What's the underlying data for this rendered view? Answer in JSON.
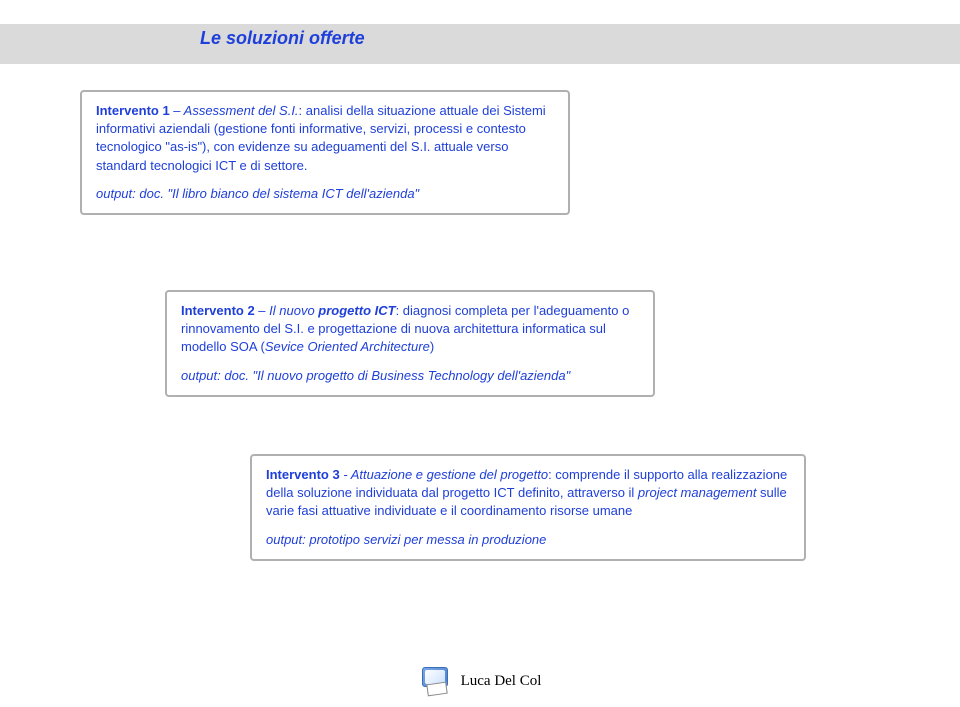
{
  "header": {
    "title": "Le soluzioni offerte"
  },
  "card1": {
    "lead_bold": "Intervento 1",
    "lead_italic": " – Assessment del S.I.",
    "body": ": analisi della situazione attuale dei Sistemi informativi aziendali (gestione fonti informative, servizi, processi e contesto tecnologico \"as-is\"), con evidenze su adeguamenti del S.I. attuale verso standard tecnologici ICT e di settore.",
    "output_label": "output:  ",
    "output_value": "doc. \"Il libro bianco del sistema ICT dell'azienda\""
  },
  "card2": {
    "lead_bold": "Intervento 2",
    "lead_italic1": " – Il nuovo ",
    "lead_italic_bold": "progetto ICT",
    "body": ": diagnosi completa per l'adeguamento o rinnovamento del S.I. e progettazione di nuova architettura informatica sul modello SOA (",
    "body_italic": "Sevice Oriented Architecture",
    "body_after": ")",
    "output_label": "output:  ",
    "output_value": "doc. \"Il nuovo progetto di Business Technology dell'azienda\""
  },
  "card3": {
    "lead_bold": "Intervento 3",
    "lead_italic": " - Attuazione e gestione del progetto",
    "body_pre": ":  comprende il supporto alla realizzazione della soluzione individuata dal progetto ICT definito, attraverso il ",
    "body_italic": "project management",
    "body_post": " sulle varie fasi attuative individuate e il coordinamento risorse umane",
    "output_label": "output:  ",
    "output_value": "prototipo servizi per messa in produzione"
  },
  "footer": {
    "author": "Luca Del Col"
  },
  "colors": {
    "text_blue": "#1e3fd9",
    "band_gray": "#dadada",
    "border_gray": "#b0b0b0",
    "background": "#ffffff"
  }
}
